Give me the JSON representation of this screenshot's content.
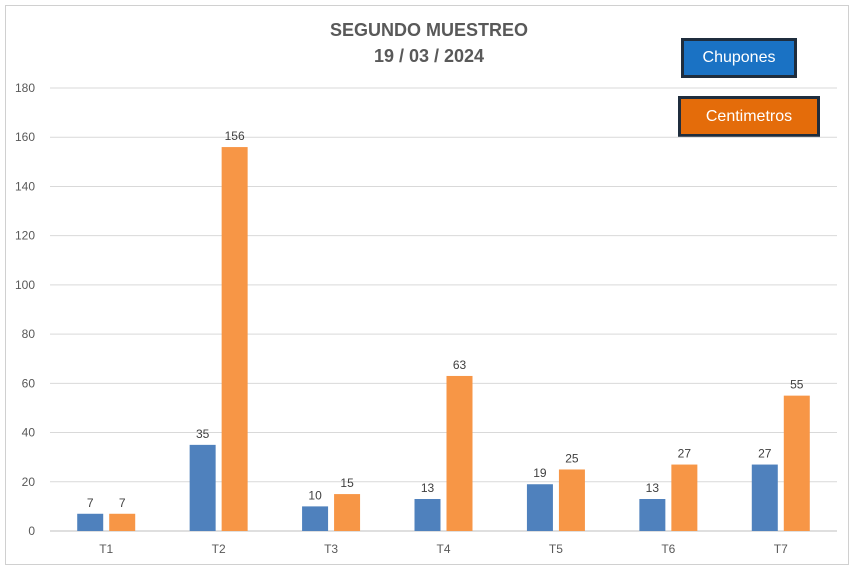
{
  "chart_data": {
    "type": "bar",
    "title": "SEGUNDO MUESTREO",
    "subtitle": "19 / 03 / 2024",
    "categories": [
      "T1",
      "T2",
      "T3",
      "T4",
      "T5",
      "T6",
      "T7"
    ],
    "series": [
      {
        "name": "Chupones",
        "values": [
          7,
          35,
          10,
          13,
          19,
          13,
          27
        ],
        "color": "#4f81bd"
      },
      {
        "name": "Centimetros",
        "values": [
          7,
          156,
          15,
          63,
          25,
          27,
          55
        ],
        "color": "#f79646"
      }
    ],
    "ylim": [
      0,
      180
    ],
    "yticks": [
      0,
      20,
      40,
      60,
      80,
      100,
      120,
      140,
      160,
      180
    ],
    "grid": true,
    "legend_position": "top-right"
  },
  "legend": {
    "chupones_label": "Chupones",
    "chupones_color": "#1a72c4",
    "centimetros_label": "Centimetros",
    "centimetros_color": "#e46c0a"
  }
}
